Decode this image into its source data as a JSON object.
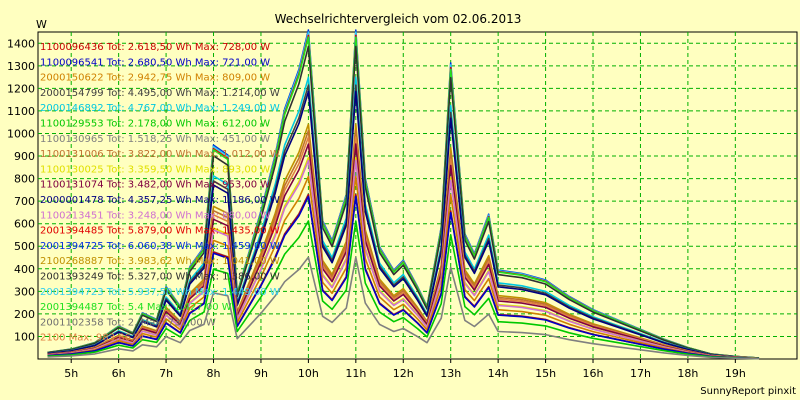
{
  "chart_data": {
    "type": "line",
    "title": "Wechselrichtervergleich vom 02.06.2013",
    "ylabel": "W",
    "xlabel": "",
    "ylim": [
      0,
      1450
    ],
    "xlim": [
      4.3,
      20.3
    ],
    "grid": true,
    "legend_placement": "top-left",
    "x_ticks": [
      {
        "value": 5,
        "label": "5h"
      },
      {
        "value": 6,
        "label": "6h"
      },
      {
        "value": 7,
        "label": "7h"
      },
      {
        "value": 8,
        "label": "8h"
      },
      {
        "value": 9,
        "label": "9h"
      },
      {
        "value": 10,
        "label": "10h"
      },
      {
        "value": 11,
        "label": "11h"
      },
      {
        "value": 12,
        "label": "12h"
      },
      {
        "value": 13,
        "label": "13h"
      },
      {
        "value": 14,
        "label": "14h"
      },
      {
        "value": 15,
        "label": "15h"
      },
      {
        "value": 16,
        "label": "16h"
      },
      {
        "value": 17,
        "label": "17h"
      },
      {
        "value": 18,
        "label": "18h"
      },
      {
        "value": 19,
        "label": "19h"
      }
    ],
    "y_ticks": [
      {
        "value": 100,
        "label": "100"
      },
      {
        "value": 200,
        "label": "200"
      },
      {
        "value": 300,
        "label": "300"
      },
      {
        "value": 400,
        "label": "400"
      },
      {
        "value": 500,
        "label": "500"
      },
      {
        "value": 600,
        "label": "600"
      },
      {
        "value": 700,
        "label": "700"
      },
      {
        "value": 800,
        "label": "800"
      },
      {
        "value": 900,
        "label": "900"
      },
      {
        "value": 1000,
        "label": "1000"
      },
      {
        "value": 1100,
        "label": "1100"
      },
      {
        "value": 1200,
        "label": "1200"
      },
      {
        "value": 1300,
        "label": "1300"
      },
      {
        "value": 1400,
        "label": "1400"
      }
    ],
    "x": [
      4.5,
      5.0,
      5.5,
      6.0,
      6.3,
      6.5,
      6.8,
      7.0,
      7.3,
      7.5,
      7.8,
      8.0,
      8.3,
      8.5,
      8.8,
      9.0,
      9.3,
      9.5,
      9.8,
      10.0,
      10.3,
      10.5,
      10.8,
      11.0,
      11.2,
      11.5,
      11.8,
      12.0,
      12.3,
      12.5,
      12.8,
      13.0,
      13.3,
      13.5,
      13.8,
      14.0,
      14.5,
      15.0,
      15.5,
      16.0,
      16.5,
      17.0,
      17.5,
      18.0,
      18.5,
      19.0,
      19.5
    ],
    "profile": [
      0.02,
      0.03,
      0.05,
      0.1,
      0.08,
      0.14,
      0.12,
      0.22,
      0.16,
      0.28,
      0.34,
      0.65,
      0.62,
      0.2,
      0.35,
      0.45,
      0.62,
      0.76,
      0.88,
      1.0,
      0.42,
      0.36,
      0.5,
      1.0,
      0.55,
      0.34,
      0.27,
      0.3,
      0.22,
      0.16,
      0.4,
      0.9,
      0.38,
      0.32,
      0.44,
      0.27,
      0.26,
      0.24,
      0.19,
      0.15,
      0.12,
      0.09,
      0.06,
      0.035,
      0.015,
      0.008,
      0.003
    ],
    "series": [
      {
        "name": "1100096436",
        "tot": "2.618,50",
        "max": "728,00",
        "peak": 728,
        "color": "#c80000",
        "legend": "1100096436 Tot: 2.618,50 Wh Max: 728,00 W"
      },
      {
        "name": "1100096541",
        "tot": "2.680,50",
        "max": "721,00",
        "peak": 721,
        "color": "#0000c8",
        "legend": "1100096541 Tot: 2.680,50 Wh Max: 721,00 W"
      },
      {
        "name": "2000150622",
        "tot": "2.942,75",
        "max": "809,00",
        "peak": 809,
        "color": "#d08000",
        "legend": "2000150622 Tot: 2.942,75 Wh Max: 809,00 W"
      },
      {
        "name": "2000154799",
        "tot": "4.495,00",
        "max": "1.214,00",
        "peak": 1214,
        "color": "#404040",
        "legend": "2000154799 Tot: 4.495,00 Wh Max: 1.214,00 W"
      },
      {
        "name": "2000146892",
        "tot": "4.767,00",
        "max": "1.249,00",
        "peak": 1249,
        "color": "#00c8e0",
        "legend": "2000146892 Tot: 4.767,00 Wh Max: 1.249,00 W"
      },
      {
        "name": "1100129553",
        "tot": "2.178,00",
        "max": "612,00",
        "peak": 612,
        "color": "#00c800",
        "legend": "1100129553 Tot: 2.178,00 Wh Max: 612,00 W"
      },
      {
        "name": "1100130965",
        "tot": "1.518,25",
        "max": "451,00",
        "peak": 451,
        "color": "#808080",
        "legend": "1100130965 Tot: 1.518,25 Wh Max: 451,00 W"
      },
      {
        "name": "1100131006",
        "tot": "3.822,00",
        "max": "1.012,00",
        "peak": 1012,
        "color": "#c07030",
        "legend": "1100131006 Tot: 3.822,00 Wh Max: 1.012,00 W"
      },
      {
        "name": "1100130025",
        "tot": "3.359,50",
        "max": "893,00",
        "peak": 893,
        "color": "#e0e000",
        "legend": "1100130025 Tot: 3.359,50 Wh Max: 893,00 W"
      },
      {
        "name": "1100131074",
        "tot": "3.482,00",
        "max": "953,00",
        "peak": 953,
        "color": "#800040",
        "legend": "1100131074 Tot: 3.482,00 Wh Max: 953,00 W"
      },
      {
        "name": "2000001478",
        "tot": "4.357,25",
        "max": "1.186,00",
        "peak": 1186,
        "color": "#000080",
        "legend": "2000001478 Tot: 4.357,25 Wh Max: 1.186,00 W"
      },
      {
        "name": "1100213451",
        "tot": "3.248,00",
        "max": "880,00",
        "peak": 880,
        "color": "#d070d0",
        "legend": "1100213451 Tot: 3.248,00 Wh Max: 880,00 W"
      },
      {
        "name": "2001394485",
        "tot": "5.879,00",
        "max": "1.435,00",
        "peak": 1435,
        "color": "#e00000",
        "legend": "2001394485 Tot: 5.879,00 Wh Max: 1.435,00 W"
      },
      {
        "name": "2001394725",
        "tot": "6.060,38",
        "max": "1.459,00",
        "peak": 1459,
        "color": "#0030e0",
        "legend": "2001394725 Tot: 6.060,38 Wh Max: 1.459,00 W"
      },
      {
        "name": "2100268887",
        "tot": "3.983,62",
        "max": "1.041,00",
        "peak": 1041,
        "color": "#c09000",
        "legend": "2100268887 Tot: 3.983,62 Wh Max: 1.041,00 W"
      },
      {
        "name": "2001393249",
        "tot": "5.327,00",
        "max": "1.386,00",
        "peak": 1386,
        "color": "#303030",
        "legend": "2001393249 Tot: 5.327,00 Wh Max: 1.386,00 W"
      },
      {
        "name": "2001394723",
        "tot": "5.937,50",
        "max": "1.449,00",
        "peak": 1449,
        "color": "#30d0f0",
        "legend": "2001394723 Tot: 5.937,50 Wh Max: 1.449,00 W"
      },
      {
        "name": "2001394487",
        "tot": "5.4",
        "max": "1.427,00",
        "peak": 1427,
        "color": "#20e020",
        "legend": "2001394487 Tot: 5.4 Max: 1.427,00 W"
      },
      {
        "name": "2001102358",
        "tot": "2.",
        "max": "731,00",
        "peak": 731,
        "color": "#707070",
        "legend": "2001102358 Tot: 2. Max: 731,00 W"
      },
      {
        "name": "2100",
        "tot": "",
        "max": "983,86",
        "peak": 984,
        "color": "#e08040",
        "legend": "2100 Max: 983,86 W"
      }
    ]
  },
  "footer": "SunnyReport pinxit"
}
